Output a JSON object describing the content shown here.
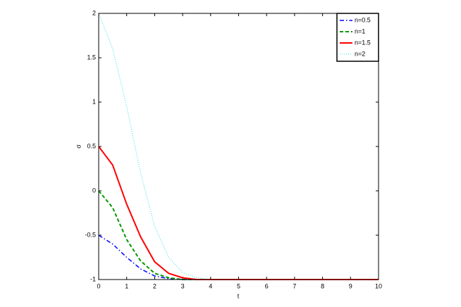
{
  "chart_data": {
    "type": "line",
    "x_label": "t",
    "y_label": "σ",
    "x": [
      0,
      0.5,
      1,
      1.5,
      2,
      2.5,
      3,
      3.5,
      4,
      5,
      6,
      7,
      8,
      9,
      10
    ],
    "series": [
      {
        "name": "n=0.5",
        "color": "#0000ff",
        "linestyle": "dash-dot",
        "values": [
          -0.5,
          -0.6,
          -0.75,
          -0.88,
          -0.96,
          -0.99,
          -1,
          -1,
          -1,
          -1,
          -1,
          -1,
          -1,
          -1,
          -1
        ]
      },
      {
        "name": "n=1",
        "color": "#009900",
        "linestyle": "dashed",
        "values": [
          0,
          -0.19,
          -0.55,
          -0.79,
          -0.93,
          -0.98,
          -1,
          -1,
          -1,
          -1,
          -1,
          -1,
          -1,
          -1,
          -1
        ]
      },
      {
        "name": "n=1.5",
        "color": "#ff0000",
        "linestyle": "solid",
        "values": [
          0.5,
          0.29,
          -0.15,
          -0.52,
          -0.8,
          -0.93,
          -0.98,
          -1,
          -1,
          -1,
          -1,
          -1,
          -1,
          -1,
          -1
        ]
      },
      {
        "name": "n=2",
        "color": "#33dddd",
        "linestyle": "dotted",
        "values": [
          2,
          1.6,
          0.95,
          0.2,
          -0.4,
          -0.75,
          -0.92,
          -0.98,
          -1,
          -1,
          -1,
          -1,
          -1,
          -1,
          -1
        ]
      }
    ],
    "xlim": [
      0,
      10
    ],
    "xticks": [
      0,
      1,
      2,
      3,
      4,
      5,
      6,
      7,
      8,
      9,
      10
    ],
    "ylim": [
      -1,
      2
    ],
    "yticks": [
      -1,
      -0.5,
      0,
      0.5,
      1,
      1.5,
      2
    ],
    "grid": false,
    "legend": "upper right"
  }
}
